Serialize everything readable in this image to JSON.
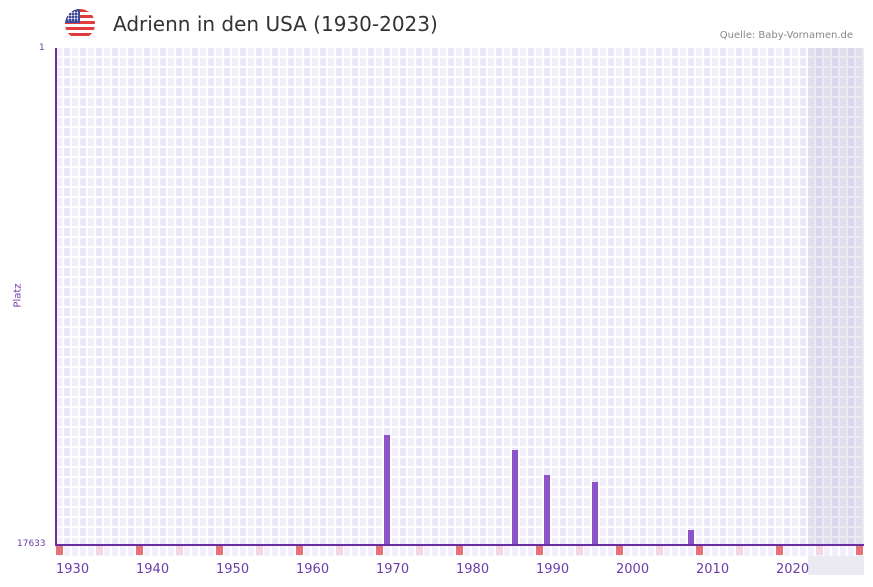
{
  "header": {
    "flag_icon": "us-flag-icon",
    "title": "Adrienn in den USA (1930-2023)",
    "source": "Quelle: Baby-Vornamen.de"
  },
  "axis": {
    "y_label": "Platz",
    "y_top": "1",
    "y_bottom": "17633",
    "x_ticks": [
      "1930",
      "1940",
      "1950",
      "1960",
      "1970",
      "1980",
      "1990",
      "2000",
      "2010",
      "2020"
    ]
  },
  "colors": {
    "bar": "#8e53c8",
    "axis": "#6a2ea0",
    "decade_marker": "#e5737a",
    "half_decade_marker": "#f3d6e0"
  },
  "chart_data": {
    "type": "bar",
    "title": "Adrienn in den USA (1930-2023)",
    "xlabel": "",
    "ylabel": "Platz",
    "ylim": [
      17633,
      1
    ],
    "y_inverted": true,
    "x_range": [
      1930,
      2023
    ],
    "grid": true,
    "legend": null,
    "categories": [
      "1970",
      "1986",
      "1990",
      "1996",
      "2008"
    ],
    "values": [
      13730,
      14260,
      15150,
      15400,
      17100
    ],
    "annotations": [
      "Quelle: Baby-Vornamen.de"
    ]
  }
}
